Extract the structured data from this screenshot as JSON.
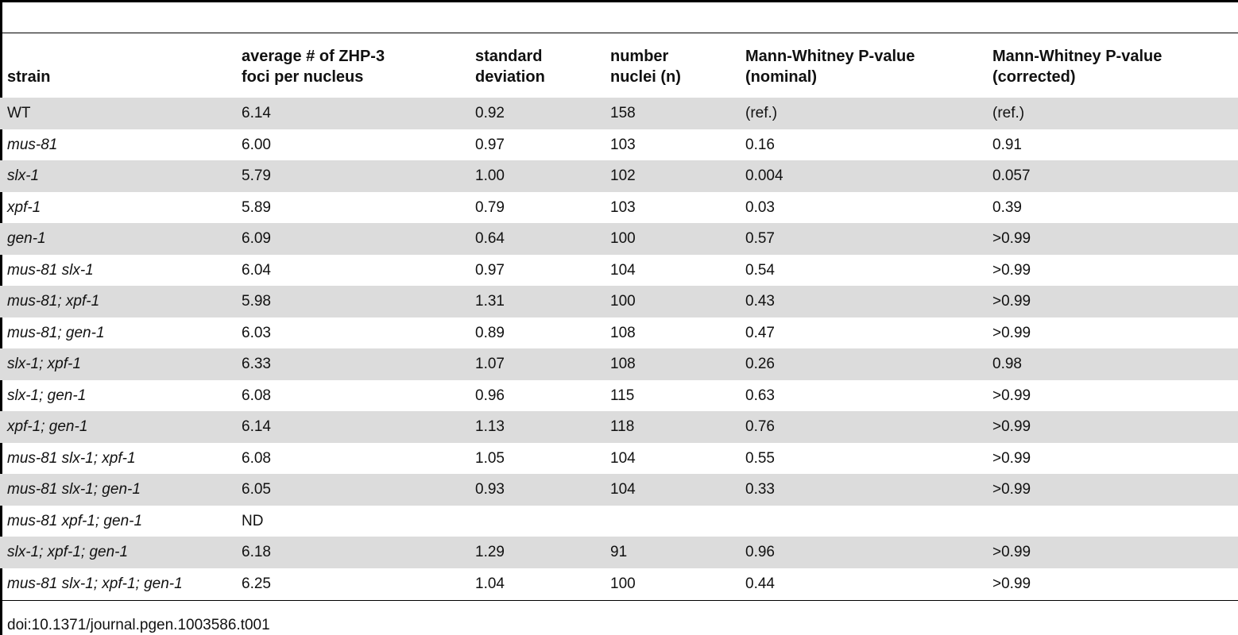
{
  "table": {
    "headers": [
      "strain",
      "average # of ZHP-3\nfoci per nucleus",
      "standard\ndeviation",
      "number\nnuclei (n)",
      "Mann-Whitney P-value\n(nominal)",
      "Mann-Whitney P-value\n(corrected)"
    ],
    "rows": [
      {
        "strain": "WT",
        "avg": "6.14",
        "sd": "0.92",
        "n": "158",
        "p_nominal": "(ref.)",
        "p_corrected": "(ref.)"
      },
      {
        "strain": "mus-81",
        "avg": "6.00",
        "sd": "0.97",
        "n": "103",
        "p_nominal": "0.16",
        "p_corrected": "0.91"
      },
      {
        "strain": "slx-1",
        "avg": "5.79",
        "sd": "1.00",
        "n": "102",
        "p_nominal": "0.004",
        "p_corrected": "0.057"
      },
      {
        "strain": "xpf-1",
        "avg": "5.89",
        "sd": "0.79",
        "n": "103",
        "p_nominal": "0.03",
        "p_corrected": "0.39"
      },
      {
        "strain": "gen-1",
        "avg": "6.09",
        "sd": "0.64",
        "n": "100",
        "p_nominal": "0.57",
        "p_corrected": ">0.99"
      },
      {
        "strain": "mus-81 slx-1",
        "avg": "6.04",
        "sd": "0.97",
        "n": "104",
        "p_nominal": "0.54",
        "p_corrected": ">0.99"
      },
      {
        "strain": "mus-81; xpf-1",
        "avg": "5.98",
        "sd": "1.31",
        "n": "100",
        "p_nominal": "0.43",
        "p_corrected": ">0.99"
      },
      {
        "strain": "mus-81; gen-1",
        "avg": "6.03",
        "sd": "0.89",
        "n": "108",
        "p_nominal": "0.47",
        "p_corrected": ">0.99"
      },
      {
        "strain": "slx-1; xpf-1",
        "avg": "6.33",
        "sd": "1.07",
        "n": "108",
        "p_nominal": "0.26",
        "p_corrected": "0.98"
      },
      {
        "strain": "slx-1; gen-1",
        "avg": "6.08",
        "sd": "0.96",
        "n": "115",
        "p_nominal": "0.63",
        "p_corrected": ">0.99"
      },
      {
        "strain": "xpf-1; gen-1",
        "avg": "6.14",
        "sd": "1.13",
        "n": "118",
        "p_nominal": "0.76",
        "p_corrected": ">0.99"
      },
      {
        "strain": "mus-81 slx-1; xpf-1",
        "avg": "6.08",
        "sd": "1.05",
        "n": "104",
        "p_nominal": "0.55",
        "p_corrected": ">0.99"
      },
      {
        "strain": "mus-81 slx-1; gen-1",
        "avg": "6.05",
        "sd": "0.93",
        "n": "104",
        "p_nominal": "0.33",
        "p_corrected": ">0.99"
      },
      {
        "strain": "mus-81 xpf-1; gen-1",
        "avg": "ND",
        "sd": "",
        "n": "",
        "p_nominal": "",
        "p_corrected": ""
      },
      {
        "strain": "slx-1; xpf-1; gen-1",
        "avg": "6.18",
        "sd": "1.29",
        "n": "91",
        "p_nominal": "0.96",
        "p_corrected": ">0.99"
      },
      {
        "strain": "mus-81 slx-1; xpf-1; gen-1",
        "avg": "6.25",
        "sd": "1.04",
        "n": "100",
        "p_nominal": "0.44",
        "p_corrected": ">0.99"
      }
    ]
  },
  "footer": {
    "doi": "doi:10.1371/journal.pgen.1003586.t001"
  },
  "colors": {
    "row_shade": "#dcdcdc",
    "rule": "#000000"
  }
}
